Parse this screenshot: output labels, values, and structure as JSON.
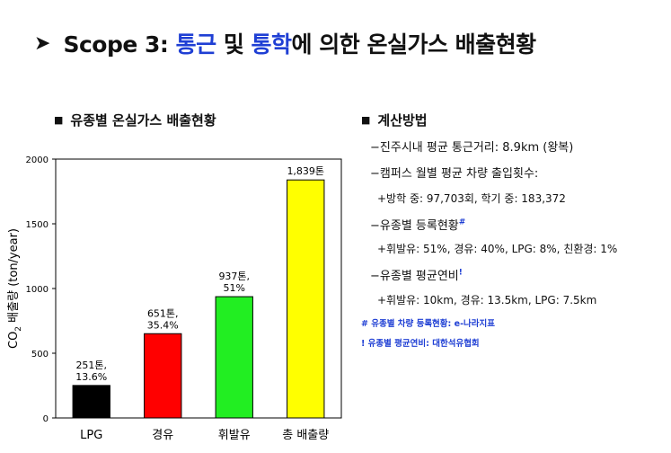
{
  "header": {
    "arrow": "➤",
    "title_prefix": "Scope 3: ",
    "title_accent1": "통근",
    "title_mid": " 및 ",
    "title_accent2": "통학",
    "title_suffix": "에 의한 온실가스 배출현황"
  },
  "left_panel": {
    "bullet": "■",
    "heading": "유종별 온실가스 배출현황"
  },
  "chart_data": {
    "type": "bar",
    "categories": [
      "LPG",
      "경유",
      "휘발유",
      "총 배출량"
    ],
    "values": [
      251,
      651,
      937,
      1839
    ],
    "data_labels": [
      [
        "251톤,",
        "13.6%"
      ],
      [
        "651톤,",
        "35.4%"
      ],
      [
        "937톤,",
        "51%"
      ],
      [
        "1,839톤",
        ""
      ]
    ],
    "colors": [
      "#000000",
      "#ff0000",
      "#22ee22",
      "#ffff00"
    ],
    "ylabel_main": "CO",
    "ylabel_sub": "2",
    "ylabel_rest": " 배출량 (ton/year)",
    "xlabel": "",
    "ylim": [
      0,
      2000
    ],
    "yticks": [
      0,
      500,
      1000,
      1500,
      2000
    ],
    "grid": false
  },
  "method": {
    "bullet": "■",
    "title": "계산방법",
    "lines": [
      "−진주시내 평균 통근거리: 8.9km (왕복)",
      "−캠퍼스 월별 평균 차량 출입횟수:",
      "+방학 중: 97,703회, 학기 중: 183,372",
      "−유종별 등록현황",
      "+휘발유: 51%, 경유: 40%, LPG: 8%, 친환경: 1%",
      "−유종별  평균연비",
      "+휘발유: 10km, 경유: 13.5km, LPG: 7.5km"
    ],
    "mark_hash": "#",
    "mark_excl": "!"
  },
  "notes": {
    "note1": "# 유종별 차량 등록현황: e-나라지표",
    "note2": "! 유종별 평균연비: 대한석유협회"
  }
}
